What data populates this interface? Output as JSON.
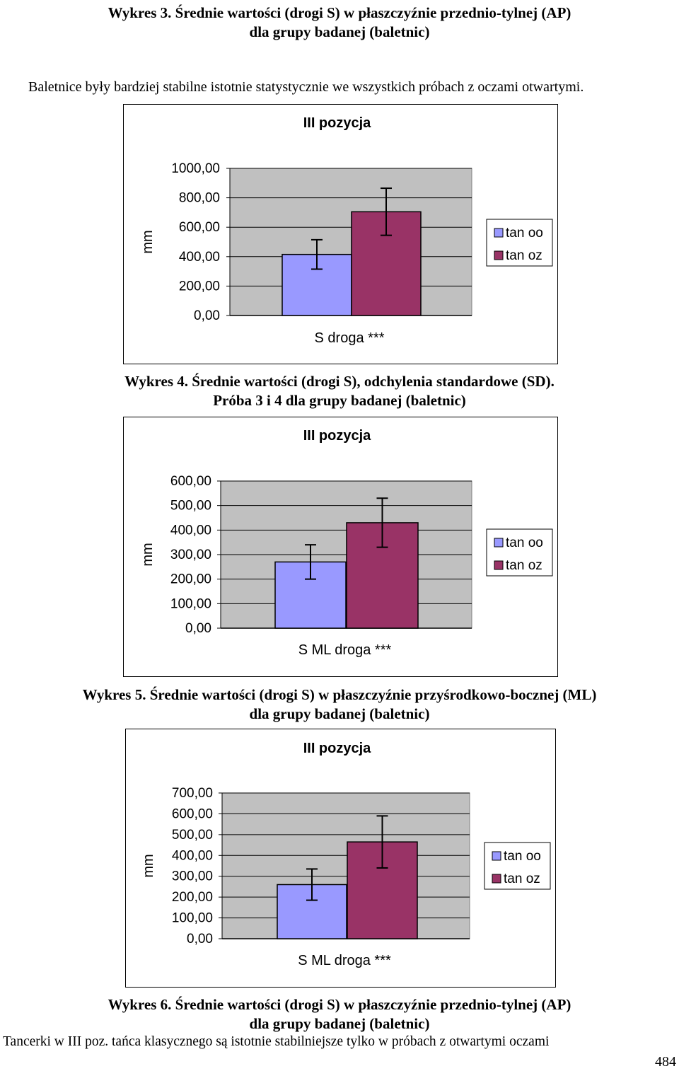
{
  "captions": {
    "w3_line1": "Wykres 3. Średnie wartości (drogi S) w płaszczyźnie przednio-tylnej (AP)",
    "w3_line2": "dla grupy badanej (baletnic)",
    "w4_line1": "Wykres 4. Średnie wartości (drogi S), odchylenia standardowe (SD).",
    "w4_line2": "Próba 3 i 4 dla grupy badanej (baletnic)",
    "w5_line1": "Wykres 5. Średnie wartości (drogi S) w płaszczyźnie przyśrodkowo-bocznej (ML)",
    "w5_line2": "dla grupy badanej (baletnic)",
    "w6_line1": "Wykres 6.  Średnie wartości (drogi S) w płaszczyźnie przednio-tylnej (AP)",
    "w6_line2": "dla grupy badanej (baletnic)"
  },
  "text": {
    "para1": "Baletnice były bardziej stabilne istotnie statystycznie we wszystkich próbach z oczami otwartymi.",
    "para2": "Tancerki w III poz. tańca klasycznego są istotnie stabilniejsze tylko w próbach z otwartymi oczami",
    "page_number": "484"
  },
  "colors": {
    "plot_area": "#c0c0c0",
    "tan_oo": "#9999ff",
    "tan_oz": "#993366",
    "border": "#000000"
  },
  "chart_data": [
    {
      "type": "bar",
      "title": "III pozycja",
      "xlabel": "S droga ***",
      "ylabel": "mm",
      "ylim": [
        0,
        1000
      ],
      "yticks": [
        "0,00",
        "200,00",
        "400,00",
        "600,00",
        "800,00",
        "1000,00"
      ],
      "tick_values": [
        0,
        200,
        400,
        600,
        800,
        1000
      ],
      "legend_position": "right",
      "series": [
        {
          "name": "tan oo",
          "value": 415,
          "error": 100
        },
        {
          "name": "tan oz",
          "value": 705,
          "error": 160
        }
      ]
    },
    {
      "type": "bar",
      "title": "III pozycja",
      "xlabel": "S ML droga ***",
      "ylabel": "mm",
      "ylim": [
        0,
        600
      ],
      "yticks": [
        "0,00",
        "100,00",
        "200,00",
        "300,00",
        "400,00",
        "500,00",
        "600,00"
      ],
      "tick_values": [
        0,
        100,
        200,
        300,
        400,
        500,
        600
      ],
      "legend_position": "right",
      "series": [
        {
          "name": "tan oo",
          "value": 270,
          "error": 70
        },
        {
          "name": "tan oz",
          "value": 430,
          "error": 100
        }
      ]
    },
    {
      "type": "bar",
      "title": "III pozycja",
      "xlabel": "S ML droga ***",
      "ylabel": "mm",
      "ylim": [
        0,
        700
      ],
      "yticks": [
        "0,00",
        "100,00",
        "200,00",
        "300,00",
        "400,00",
        "500,00",
        "600,00",
        "700,00"
      ],
      "tick_values": [
        0,
        100,
        200,
        300,
        400,
        500,
        600,
        700
      ],
      "legend_position": "right",
      "series": [
        {
          "name": "tan oo",
          "value": 260,
          "error": 75
        },
        {
          "name": "tan oz",
          "value": 465,
          "error": 125
        }
      ]
    }
  ]
}
